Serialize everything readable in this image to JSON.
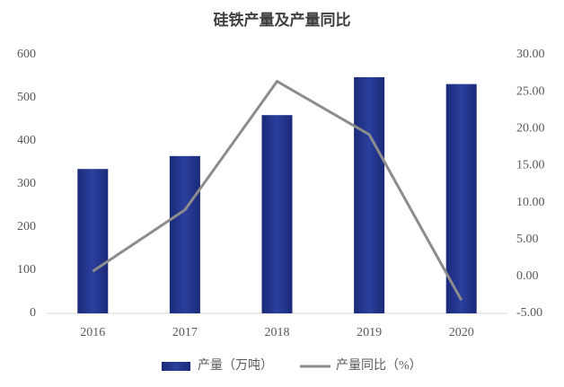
{
  "chart_data": {
    "type": "bar",
    "title": "硅铁产量及产量同比",
    "categories": [
      "2016",
      "2017",
      "2018",
      "2019",
      "2020"
    ],
    "series": [
      {
        "name": "产量（万吨）",
        "type": "bar",
        "color": "#1b2a78",
        "values": [
          335,
          365,
          460,
          548,
          532
        ]
      },
      {
        "name": "产量同比（%）",
        "type": "line",
        "axis": "y2",
        "color": "#8c8c8c",
        "values": [
          0.7,
          9.0,
          26.4,
          19.2,
          -3.2
        ]
      }
    ],
    "ylim": [
      0,
      600
    ],
    "yticks": [
      0,
      100,
      200,
      300,
      400,
      500,
      600
    ],
    "y2lim": [
      -5,
      30
    ],
    "y2ticks": [
      {
        "value": -5,
        "label": "-5.00"
      },
      {
        "value": 0,
        "label": "0.00"
      },
      {
        "value": 5,
        "label": "5.00"
      },
      {
        "value": 10,
        "label": "10.00"
      },
      {
        "value": 15,
        "label": "15.00"
      },
      {
        "value": 20,
        "label": "20.00"
      },
      {
        "value": 25,
        "label": "25.00"
      },
      {
        "value": 30,
        "label": "30.00"
      }
    ],
    "grid": false,
    "legend": "bottom"
  }
}
